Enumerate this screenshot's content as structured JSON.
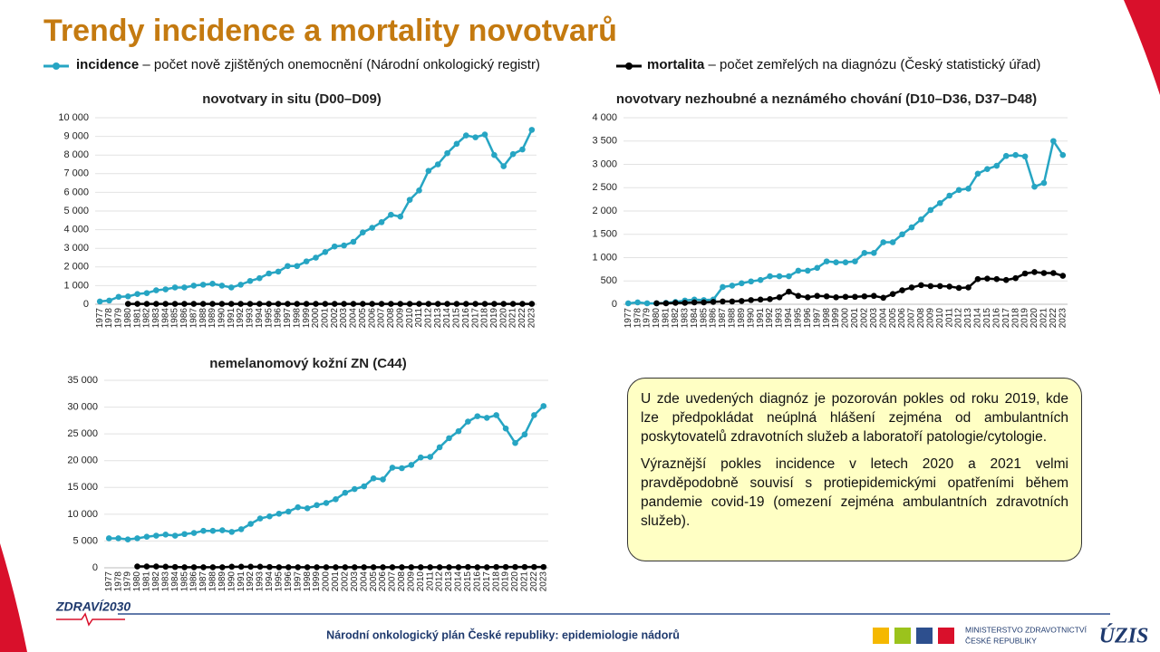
{
  "title": "Trendy incidence a mortality novotvarů",
  "legend_descriptions": [
    "– počet nově zjištěných onemocnění (Národní onkologický registr)",
    "– počet zemřelých na diagnózu (Český statistický úřad)"
  ],
  "note": [
    "U zde uvedených diagnóz je pozorován pokles od roku 2019, kde lze předpokládat neúplná hlášení zejména od ambulantních poskytovatelů zdravotních služeb a laboratoří patologie/cytologie.",
    "Výraznější pokles incidence v letech 2020 a 2021 velmi pravděpodobně souvisí s protiepidemickými opatřeními během pandemie covid-19 (omezení zejména ambulantních zdravotních služeb)."
  ],
  "footer": {
    "text": "Národní onkologický plán České republiky: epidemiologie nádorů",
    "logo_left": "ZDRAVÍ2030",
    "ministry": [
      "MINISTERSTVO ZDRAVOTNICTVÍ",
      "ČESKÉ REPUBLIKY"
    ],
    "logo_right": "ÚZIS"
  },
  "chart_data": [
    {
      "type": "line",
      "title": "novotvary in situ (D00–D09)",
      "categories": [
        "1977",
        "1978",
        "1979",
        "1980",
        "1981",
        "1982",
        "1983",
        "1984",
        "1985",
        "1986",
        "1987",
        "1988",
        "1989",
        "1990",
        "1991",
        "1992",
        "1993",
        "1994",
        "1995",
        "1996",
        "1997",
        "1998",
        "1999",
        "2000",
        "2001",
        "2002",
        "2003",
        "2004",
        "2005",
        "2006",
        "2007",
        "2008",
        "2009",
        "2010",
        "2011",
        "2012",
        "2013",
        "2014",
        "2015",
        "2016",
        "2017",
        "2018",
        "2019",
        "2020",
        "2021",
        "2022",
        "2023"
      ],
      "series": [
        {
          "name": "incidence",
          "color": "#26a5c3",
          "values": [
            150,
            200,
            400,
            420,
            550,
            600,
            750,
            800,
            900,
            900,
            1000,
            1050,
            1100,
            1000,
            900,
            1050,
            1250,
            1400,
            1650,
            1750,
            2050,
            2050,
            2300,
            2500,
            2800,
            3100,
            3150,
            3350,
            3850,
            4100,
            4400,
            4800,
            4700,
            5600,
            6100,
            7150,
            7500,
            8100,
            8600,
            9050,
            8950,
            9100,
            8000,
            7400,
            8050,
            8300,
            9350
          ]
        },
        {
          "name": "mortalita",
          "color": "#000000",
          "values": [
            null,
            null,
            null,
            20,
            20,
            20,
            20,
            20,
            20,
            20,
            20,
            20,
            20,
            20,
            20,
            20,
            20,
            20,
            20,
            20,
            20,
            20,
            20,
            20,
            20,
            20,
            20,
            20,
            20,
            20,
            20,
            20,
            20,
            20,
            20,
            20,
            20,
            20,
            20,
            20,
            20,
            20,
            20,
            20,
            20,
            20,
            20
          ]
        }
      ],
      "ylim": [
        0,
        10000
      ],
      "yticks": [
        0,
        {
          "value": 1000,
          "label": "1 000"
        },
        {
          "value": 2000,
          "label": "2 000"
        },
        {
          "value": 3000,
          "label": "3 000"
        },
        {
          "value": 4000,
          "label": "4 000"
        },
        {
          "value": 5000,
          "label": "5 000"
        },
        {
          "value": 6000,
          "label": "6 000"
        },
        {
          "value": 7000,
          "label": "7 000"
        },
        {
          "value": 8000,
          "label": "8 000"
        },
        {
          "value": 9000,
          "label": "9 000"
        },
        {
          "value": 10000,
          "label": "10 000"
        }
      ],
      "grid": true
    },
    {
      "type": "line",
      "title": "novotvary nezhoubné a neznámého chování (D10–D36, D37–D48)",
      "categories": [
        "1977",
        "1978",
        "1979",
        "1980",
        "1981",
        "1982",
        "1983",
        "1984",
        "1985",
        "1986",
        "1987",
        "1988",
        "1989",
        "1990",
        "1991",
        "1992",
        "1993",
        "1994",
        "1995",
        "1996",
        "1997",
        "1998",
        "1999",
        "2000",
        "2001",
        "2002",
        "2003",
        "2004",
        "2005",
        "2006",
        "2007",
        "2008",
        "2009",
        "2010",
        "2011",
        "2012",
        "2013",
        "2014",
        "2015",
        "2016",
        "2017",
        "2018",
        "2019",
        "2020",
        "2021",
        "2022",
        "2023"
      ],
      "series": [
        {
          "name": "incidence",
          "color": "#26a5c3",
          "values": [
            20,
            40,
            20,
            20,
            30,
            50,
            80,
            100,
            90,
            100,
            370,
            400,
            450,
            490,
            520,
            600,
            600,
            600,
            720,
            720,
            780,
            920,
            900,
            900,
            920,
            1100,
            1100,
            1330,
            1330,
            1500,
            1650,
            1820,
            2020,
            2170,
            2330,
            2450,
            2480,
            2800,
            2900,
            2970,
            3180,
            3200,
            3170,
            2520,
            2600,
            3500,
            3200
          ]
        },
        {
          "name": "mortalita",
          "color": "#000000",
          "values": [
            null,
            null,
            null,
            20,
            20,
            30,
            30,
            40,
            40,
            50,
            60,
            60,
            70,
            90,
            100,
            110,
            150,
            270,
            180,
            150,
            180,
            170,
            150,
            160,
            160,
            170,
            180,
            140,
            220,
            300,
            360,
            410,
            390,
            390,
            380,
            350,
            360,
            540,
            550,
            540,
            520,
            560,
            660,
            690,
            670,
            670,
            610
          ]
        }
      ],
      "ylim": [
        0,
        4000
      ],
      "yticks": [
        0,
        500,
        {
          "value": 1000,
          "label": "1 000"
        },
        {
          "value": 1500,
          "label": "1 500"
        },
        {
          "value": 2000,
          "label": "2 000"
        },
        {
          "value": 2500,
          "label": "2 500"
        },
        {
          "value": 3000,
          "label": "3 000"
        },
        {
          "value": 3500,
          "label": "3 500"
        },
        {
          "value": 4000,
          "label": "4 000"
        }
      ],
      "grid": true
    },
    {
      "type": "line",
      "title": "nemelanomový kožní ZN (C44)",
      "categories": [
        "1977",
        "1978",
        "1979",
        "1980",
        "1981",
        "1982",
        "1983",
        "1984",
        "1985",
        "1986",
        "1987",
        "1988",
        "1989",
        "1990",
        "1991",
        "1992",
        "1993",
        "1994",
        "1995",
        "1996",
        "1997",
        "1998",
        "1999",
        "2000",
        "2001",
        "2002",
        "2003",
        "2004",
        "2005",
        "2006",
        "2007",
        "2008",
        "2009",
        "2010",
        "2011",
        "2012",
        "2013",
        "2014",
        "2015",
        "2016",
        "2017",
        "2018",
        "2019",
        "2020",
        "2021",
        "2022",
        "2023"
      ],
      "series": [
        {
          "name": "incidence",
          "color": "#26a5c3",
          "values": [
            5500,
            5500,
            5300,
            5500,
            5800,
            6000,
            6200,
            6000,
            6300,
            6500,
            6900,
            6900,
            7000,
            6700,
            7200,
            8200,
            9200,
            9600,
            10100,
            10500,
            11300,
            11100,
            11700,
            12100,
            12800,
            14000,
            14700,
            15200,
            16700,
            16500,
            18700,
            18600,
            19200,
            20600,
            20700,
            22500,
            24200,
            25500,
            27300,
            28300,
            28000,
            28500,
            26000,
            23300,
            24900,
            28500,
            30200
          ]
        },
        {
          "name": "mortalita",
          "color": "#000000",
          "values": [
            null,
            null,
            null,
            250,
            250,
            250,
            200,
            150,
            100,
            100,
            100,
            100,
            100,
            200,
            200,
            200,
            200,
            150,
            100,
            100,
            100,
            100,
            100,
            100,
            100,
            100,
            100,
            100,
            100,
            100,
            100,
            100,
            100,
            100,
            100,
            100,
            100,
            100,
            150,
            100,
            100,
            150,
            150,
            150,
            150,
            150,
            150
          ]
        }
      ],
      "ylim": [
        0,
        35000
      ],
      "yticks": [
        0,
        {
          "value": 5000,
          "label": "5 000"
        },
        {
          "value": 10000,
          "label": "10 000"
        },
        {
          "value": 15000,
          "label": "15 000"
        },
        {
          "value": 20000,
          "label": "20 000"
        },
        {
          "value": 25000,
          "label": "25 000"
        },
        {
          "value": 30000,
          "label": "30 000"
        },
        {
          "value": 35000,
          "label": "35 000"
        }
      ],
      "grid": true
    }
  ]
}
